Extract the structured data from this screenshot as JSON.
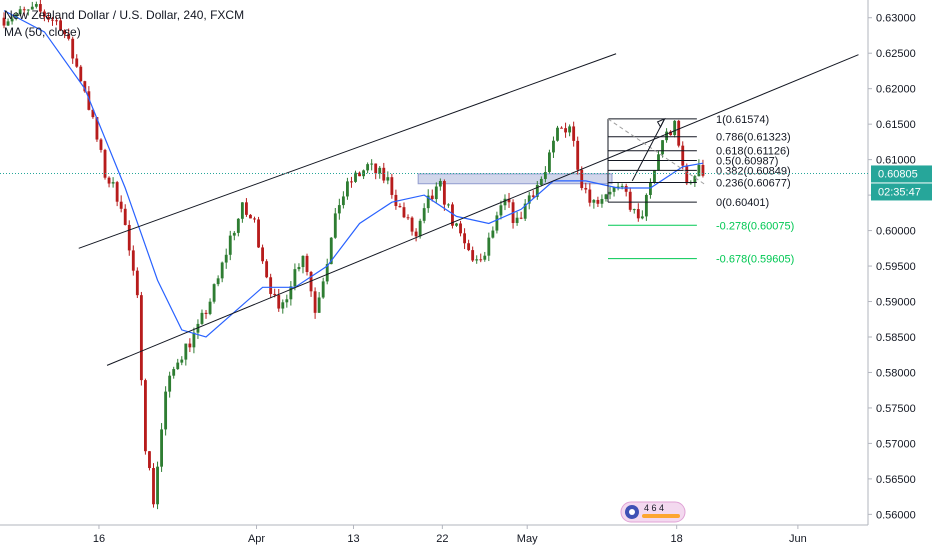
{
  "header": {
    "title": "New Zealand Dollar / U.S. Dollar, 240, FXCM",
    "indicator": "MA (50, close)"
  },
  "colors": {
    "up": "#2e7d32",
    "down": "#b71c1c",
    "ma": "#2962ff",
    "fib": "#131722",
    "fib_ext": "#00c853",
    "price_label_bg": "#26a69a",
    "zone": "#5b6ab8"
  },
  "price_axis": {
    "ticks": [
      "0.63000",
      "0.62500",
      "0.62000",
      "0.61500",
      "0.61000",
      "0.60500",
      "0.60000",
      "0.59500",
      "0.59000",
      "0.58500",
      "0.58000",
      "0.57500",
      "0.57000",
      "0.56500",
      "0.56000"
    ],
    "current_price": "0.60805",
    "countdown": "02:35:47"
  },
  "time_axis": {
    "ticks": [
      "16",
      "Apr",
      "13",
      "22",
      "May",
      "18",
      "Jun"
    ]
  },
  "logo": {
    "text": "4 6 4",
    "icon": "tradingview-badge-icon"
  },
  "chart_data": {
    "type": "candlestick",
    "title": "New Zealand Dollar / U.S. Dollar, 240, FXCM",
    "ylim": [
      0.5585,
      0.6325
    ],
    "x_tick_labels": [
      "16",
      "Apr",
      "13",
      "22",
      "May",
      "18",
      "Jun"
    ],
    "y_tick_labels": [
      "0.63000",
      "0.62500",
      "0.62000",
      "0.61500",
      "0.61000",
      "0.60500",
      "0.60000",
      "0.59500",
      "0.59000",
      "0.58500",
      "0.58000",
      "0.57500",
      "0.57000",
      "0.56500",
      "0.56000"
    ],
    "price_path": [
      [
        0,
        0.63
      ],
      [
        8,
        0.631
      ],
      [
        14,
        0.6292
      ],
      [
        20,
        0.62
      ],
      [
        25,
        0.608
      ],
      [
        29,
        0.604
      ],
      [
        33,
        0.59
      ],
      [
        35,
        0.57
      ],
      [
        37,
        0.562
      ],
      [
        40,
        0.577
      ],
      [
        43,
        0.582
      ],
      [
        48,
        0.586
      ],
      [
        53,
        0.593
      ],
      [
        56,
        0.599
      ],
      [
        59,
        0.603
      ],
      [
        62,
        0.601
      ],
      [
        65,
        0.594
      ],
      [
        68,
        0.588
      ],
      [
        71,
        0.593
      ],
      [
        74,
        0.597
      ],
      [
        77,
        0.589
      ],
      [
        80,
        0.596
      ],
      [
        83,
        0.604
      ],
      [
        86,
        0.607
      ],
      [
        90,
        0.609
      ],
      [
        95,
        0.607
      ],
      [
        98,
        0.603
      ],
      [
        102,
        0.599
      ],
      [
        105,
        0.604
      ],
      [
        108,
        0.606
      ],
      [
        112,
        0.6
      ],
      [
        115,
        0.597
      ],
      [
        118,
        0.595
      ],
      [
        121,
        0.6
      ],
      [
        124,
        0.604
      ],
      [
        127,
        0.601
      ],
      [
        130,
        0.605
      ],
      [
        134,
        0.608
      ],
      [
        137,
        0.614
      ],
      [
        140,
        0.615
      ],
      [
        143,
        0.607
      ],
      [
        146,
        0.604
      ],
      [
        150,
        0.606
      ],
      [
        154,
        0.605
      ],
      [
        157,
        0.601
      ],
      [
        160,
        0.606
      ],
      [
        163,
        0.613
      ],
      [
        166,
        0.6145
      ],
      [
        168,
        0.609
      ],
      [
        170,
        0.606
      ],
      [
        172,
        0.61
      ],
      [
        173,
        0.608
      ]
    ],
    "moving_average": {
      "name": "MA (50, close)",
      "points": [
        [
          0,
          0.631
        ],
        [
          10,
          0.628
        ],
        [
          20,
          0.62
        ],
        [
          30,
          0.606
        ],
        [
          38,
          0.593
        ],
        [
          44,
          0.586
        ],
        [
          50,
          0.585
        ],
        [
          56,
          0.588
        ],
        [
          64,
          0.592
        ],
        [
          72,
          0.592
        ],
        [
          80,
          0.595
        ],
        [
          88,
          0.601
        ],
        [
          96,
          0.604
        ],
        [
          104,
          0.605
        ],
        [
          112,
          0.602
        ],
        [
          120,
          0.601
        ],
        [
          128,
          0.603
        ],
        [
          136,
          0.607
        ],
        [
          144,
          0.607
        ],
        [
          152,
          0.606
        ],
        [
          160,
          0.606
        ],
        [
          168,
          0.609
        ],
        [
          173,
          0.6095
        ]
      ]
    },
    "channel": {
      "upper": [
        [
          19,
          0.5975
        ],
        [
          100,
          0.6142
        ]
      ],
      "lower": [
        [
          26,
          0.581
        ],
        [
          170,
          0.6149
        ]
      ]
    },
    "fibonacci": {
      "levels": [
        {
          "label": "1(0.61574)",
          "value": 0.61574
        },
        {
          "label": "0.786(0.61323)",
          "value": 0.61323
        },
        {
          "label": "0.618(0.61126)",
          "value": 0.61126
        },
        {
          "label": "0.5(0.60987)",
          "value": 0.60987
        },
        {
          "label": "0.382(0.60849)",
          "value": 0.60849
        },
        {
          "label": "0.236(0.60677)",
          "value": 0.60677
        },
        {
          "label": "0(0.60401)",
          "value": 0.60401
        }
      ],
      "extensions": [
        {
          "label": "-0.278(0.60075)",
          "value": 0.60075
        },
        {
          "label": "-0.678(0.59605)",
          "value": 0.59605
        }
      ]
    },
    "resistance_zone": {
      "top": 0.608,
      "bottom": 0.6066
    },
    "current_price": 0.60805
  }
}
